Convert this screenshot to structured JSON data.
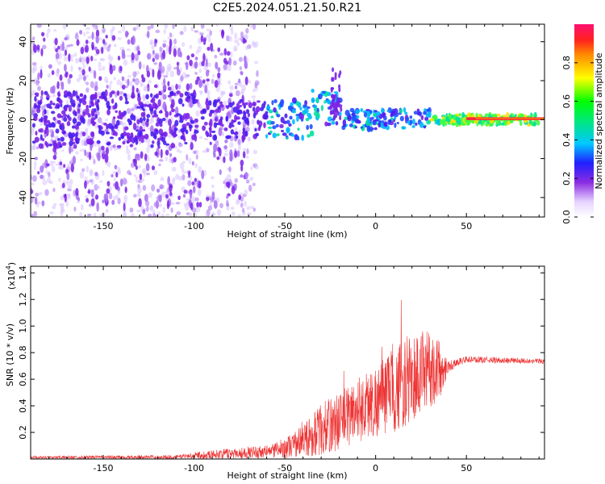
{
  "title": "C2E5.2024.051.21.50.R21",
  "chart_data": [
    {
      "type": "heatmap",
      "name": "spectrogram",
      "xlabel": "Height of straight line (km)",
      "ylabel": "Frequency (Hz)",
      "xlim": [
        -190,
        93
      ],
      "ylim": [
        -50,
        49
      ],
      "xticks": [
        -150,
        -100,
        -50,
        0,
        50
      ],
      "yticks": [
        -40,
        -20,
        0,
        20,
        40
      ],
      "colorbar": {
        "label": "Normalized spectral amplitude",
        "range": [
          0,
          1
        ],
        "ticks": [
          0.0,
          0.2,
          0.4,
          0.6,
          0.8
        ]
      }
    },
    {
      "type": "line",
      "name": "snr",
      "xlabel": "Height of straight line (km)",
      "ylabel": "SNR (10 * v/v)",
      "y_scale_label": "(x10",
      "y_scale_exp": "4",
      "y_scale_close": ")",
      "xlim": [
        -190,
        93
      ],
      "ylim": [
        0,
        1.45
      ],
      "xticks": [
        -150,
        -100,
        -50,
        0,
        50
      ],
      "yticks": [
        0.2,
        0.4,
        0.6,
        0.8,
        1.0,
        1.2,
        1.4
      ],
      "color": "#ee3333",
      "envelope": {
        "x": [
          -190,
          -110,
          -100,
          -80,
          -60,
          -50,
          -40,
          -30,
          -20,
          -10,
          0,
          10,
          20,
          30,
          36,
          40,
          45,
          50,
          93
        ],
        "base": [
          0.01,
          0.01,
          0.02,
          0.03,
          0.04,
          0.06,
          0.1,
          0.16,
          0.22,
          0.3,
          0.35,
          0.42,
          0.5,
          0.58,
          0.62,
          0.68,
          0.72,
          0.74,
          0.73
        ],
        "spread": [
          0.02,
          0.03,
          0.05,
          0.08,
          0.1,
          0.15,
          0.25,
          0.4,
          0.45,
          0.5,
          0.55,
          0.65,
          0.7,
          0.6,
          0.4,
          0.1,
          0.06,
          0.05,
          0.04
        ]
      }
    }
  ]
}
